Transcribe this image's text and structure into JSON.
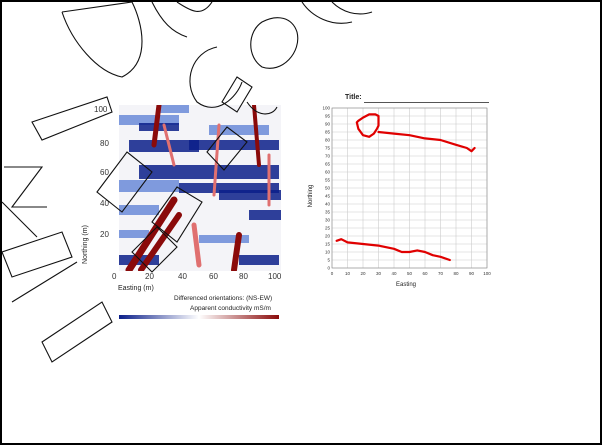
{
  "left_map": {
    "y_ticks": [
      "100",
      "80",
      "60",
      "40",
      "20",
      "0"
    ],
    "x_ticks": [
      "0",
      "20",
      "40",
      "60",
      "80",
      "100"
    ],
    "ylabel": "Northing (m)",
    "xlabel": "Easting (m)",
    "caption_line1": "Differenced orientations: (NS-EW)",
    "caption_line2": "Apparent conductivity mS/m",
    "colors": {
      "low": "#0b1f8a",
      "mid": "#ffffff",
      "high": "#8a0a0a"
    }
  },
  "right_chart": {
    "title_label": "Title:",
    "chart_data": {
      "type": "line",
      "title": "",
      "xlabel": "Easting",
      "ylabel": "Northing",
      "xlim": [
        0,
        100
      ],
      "ylim": [
        0,
        100
      ],
      "x_ticks": [
        0,
        10,
        20,
        30,
        40,
        50,
        60,
        70,
        80,
        90,
        100
      ],
      "y_ticks": [
        0,
        5,
        10,
        15,
        20,
        25,
        30,
        35,
        40,
        45,
        50,
        55,
        60,
        65,
        70,
        75,
        80,
        85,
        90,
        95,
        100
      ],
      "grid": true,
      "series": [
        {
          "values_xy": [
            [
              17,
              92
            ],
            [
              20,
              94
            ],
            [
              24,
              96
            ],
            [
              28,
              96
            ],
            [
              30,
              95
            ],
            [
              30,
              89
            ],
            [
              29,
              87
            ],
            [
              27,
              84
            ],
            [
              24,
              82
            ],
            [
              20,
              83
            ],
            [
              17,
              87
            ],
            [
              16,
              91
            ],
            [
              17,
              92
            ]
          ]
        },
        {
          "values_xy": [
            [
              30,
              85
            ],
            [
              40,
              84
            ],
            [
              50,
              83
            ],
            [
              60,
              81
            ],
            [
              70,
              80
            ],
            [
              80,
              77
            ],
            [
              87,
              75
            ],
            [
              90,
              73
            ],
            [
              92,
              75
            ]
          ]
        },
        {
          "values_xy": [
            [
              3,
              17
            ],
            [
              6,
              18
            ],
            [
              10,
              16
            ],
            [
              20,
              15
            ],
            [
              30,
              14
            ],
            [
              40,
              12
            ],
            [
              45,
              10
            ],
            [
              50,
              10
            ],
            [
              55,
              11
            ],
            [
              60,
              10
            ],
            [
              65,
              8
            ],
            [
              70,
              7
            ],
            [
              76,
              5
            ]
          ]
        }
      ],
      "line_color": "#e00000"
    }
  }
}
